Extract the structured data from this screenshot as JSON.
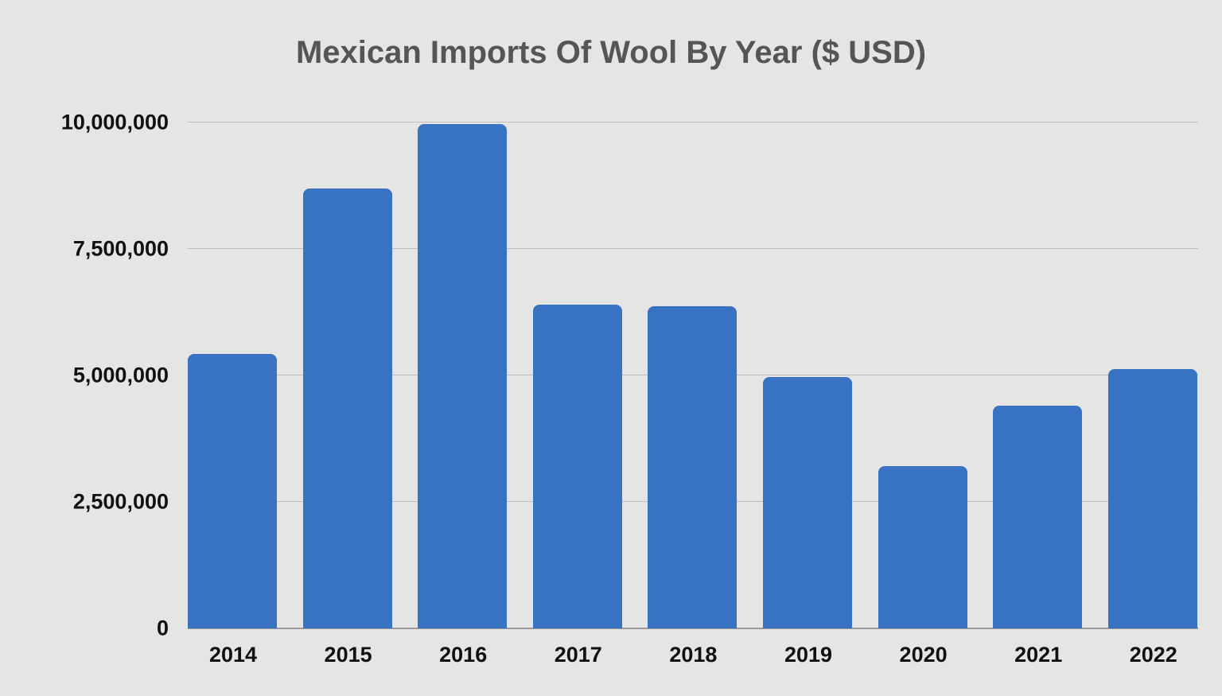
{
  "chart_data": {
    "type": "bar",
    "title": "Mexican Imports Of Wool By Year ($ USD)",
    "xlabel": "",
    "ylabel": "",
    "categories": [
      "2014",
      "2015",
      "2016",
      "2017",
      "2018",
      "2019",
      "2020",
      "2021",
      "2022"
    ],
    "values": [
      5420000,
      8680000,
      9950000,
      6390000,
      6360000,
      4960000,
      3200000,
      4400000,
      5110000
    ],
    "ylim": [
      0,
      10000000
    ],
    "yticks": [
      "0",
      "2,500,000",
      "5,000,000",
      "7,500,000",
      "10,000,000"
    ],
    "grid": true,
    "legend": null,
    "bar_color": "#3872c2",
    "background": "#e5e5e4"
  }
}
